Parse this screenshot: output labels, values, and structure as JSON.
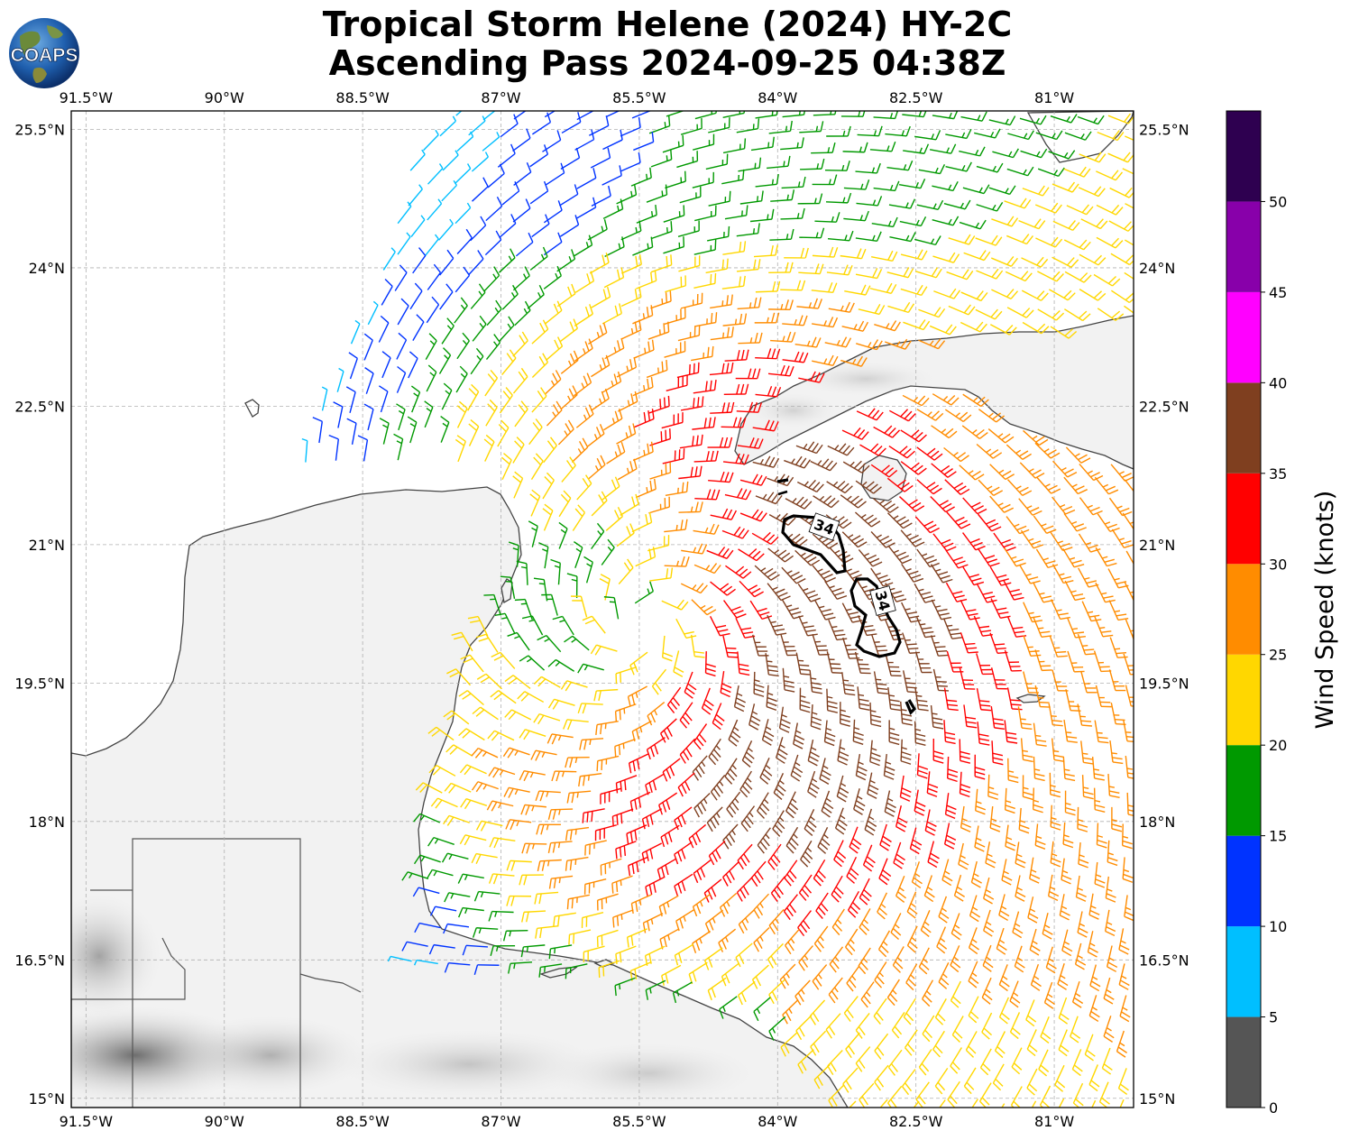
{
  "title_line1": "Tropical Storm Helene (2024) HY-2C",
  "title_line2": "Ascending Pass 2024-09-25 04:38Z",
  "logo_text": "COAPS",
  "map": {
    "lon_labels": [
      "91.5°W",
      "90°W",
      "88.5°W",
      "87°W",
      "85.5°W",
      "84°W",
      "82.5°W",
      "81°W"
    ],
    "lat_labels": [
      "25.5°N",
      "24°N",
      "22.5°N",
      "21°N",
      "19.5°N",
      "18°N",
      "16.5°N",
      "15°N"
    ],
    "lon_values": [
      -91.5,
      -90,
      -88.5,
      -87,
      -85.5,
      -84,
      -82.5,
      -81
    ],
    "lat_values": [
      25.5,
      24,
      22.5,
      21,
      19.5,
      18,
      16.5,
      15
    ],
    "extent": {
      "lon_min": -91.66,
      "lon_max": -80.14,
      "lat_min": 14.9,
      "lat_max": 25.7
    },
    "storm_center": {
      "lon": -85.5,
      "lat": 20.15
    },
    "contour_label": "34",
    "gridlines": true
  },
  "colorbar": {
    "label": "Wind Speed (knots)",
    "ticks": [
      "0",
      "5",
      "10",
      "15",
      "20",
      "25",
      "30",
      "35",
      "40",
      "45",
      "50"
    ],
    "bins": [
      {
        "min": 0,
        "max": 5,
        "color": "#555555"
      },
      {
        "min": 5,
        "max": 10,
        "color": "#00bfff"
      },
      {
        "min": 10,
        "max": 15,
        "color": "#0033ff"
      },
      {
        "min": 15,
        "max": 20,
        "color": "#009900"
      },
      {
        "min": 20,
        "max": 25,
        "color": "#ffd700"
      },
      {
        "min": 25,
        "max": 30,
        "color": "#ff8c00"
      },
      {
        "min": 30,
        "max": 35,
        "color": "#ff0000"
      },
      {
        "min": 35,
        "max": 40,
        "color": "#7f3f1f"
      },
      {
        "min": 40,
        "max": 45,
        "color": "#ff00ff"
      },
      {
        "min": 45,
        "max": 50,
        "color": "#8800aa"
      },
      {
        "min": 50,
        "max": 55,
        "color": "#2e0050"
      }
    ]
  }
}
